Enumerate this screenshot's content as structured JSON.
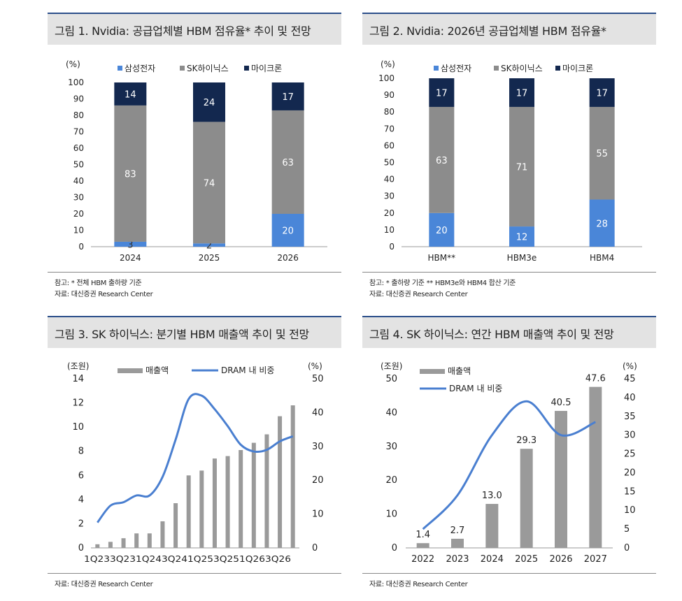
{
  "colors": {
    "samsung": "#4a86d8",
    "hynix": "#8c8c8c",
    "micron": "#13284f",
    "line": "#4a7fd0",
    "revenue_bar": "#9a9a9a"
  },
  "panel1": {
    "title": "그림 1. Nvidia: 공급업체별 HBM 점유율* 추이 및 전망",
    "notes": [
      "참고: * 전체 HBM 출하량 기준",
      "자료: 대신증권 Research Center"
    ]
  },
  "panel2": {
    "title": "그림 2. Nvidia: 2026년 공급업체별 HBM 점유율*",
    "notes": [
      "참고: * 출하량 기준 ** HBM3e와 HBM4 합산 기준",
      "자료: 대신증권 Research Center"
    ]
  },
  "panel3": {
    "title": "그림 3. SK 하이닉스: 분기별 HBM 매출액 추이 및 전망",
    "notes": [
      "자료: 대신증권 Research Center"
    ]
  },
  "panel4": {
    "title": "그림 4. SK 하이닉스: 연간 HBM 매출액 추이 및 전망",
    "notes": [
      "자료: 대신증권 Research Center"
    ]
  },
  "chart_data": [
    {
      "type": "bar",
      "stacked": true,
      "unit_label": "(%)",
      "categories": [
        "2024",
        "2025",
        "2026"
      ],
      "series": [
        {
          "name": "삼성전자",
          "values": [
            3,
            2,
            20
          ]
        },
        {
          "name": "SK하이닉스",
          "values": [
            83,
            74,
            63
          ]
        },
        {
          "name": "마이크론",
          "values": [
            14,
            24,
            17
          ]
        }
      ],
      "ylim": [
        0,
        100
      ],
      "yticks": [
        0,
        10,
        20,
        30,
        40,
        50,
        60,
        70,
        80,
        90,
        100
      ],
      "legend": "top"
    },
    {
      "type": "bar",
      "stacked": true,
      "unit_label": "(%)",
      "categories": [
        "HBM**",
        "HBM3e",
        "HBM4"
      ],
      "series": [
        {
          "name": "삼성전자",
          "values": [
            20,
            12,
            28
          ]
        },
        {
          "name": "SK하이닉스",
          "values": [
            63,
            71,
            55
          ]
        },
        {
          "name": "마이크론",
          "values": [
            17,
            17,
            17
          ]
        }
      ],
      "ylim": [
        0,
        100
      ],
      "yticks": [
        0,
        10,
        20,
        30,
        40,
        50,
        60,
        70,
        80,
        90,
        100
      ],
      "legend": "top"
    },
    {
      "type": "bar",
      "secondary_type": "line",
      "left_unit": "(조원)",
      "right_unit": "(%)",
      "x_tick_labels": [
        "1Q23",
        "3Q23",
        "1Q24",
        "3Q24",
        "1Q25",
        "3Q25",
        "1Q26",
        "3Q26"
      ],
      "x_label_row": "1Q233Q231Q243Q241Q253Q251Q263Q26",
      "series": [
        {
          "name": "매출액",
          "axis": "left",
          "type": "bar",
          "values": [
            0.3,
            0.5,
            0.8,
            1.2,
            1.2,
            2.2,
            3.7,
            6.0,
            6.4,
            7.4,
            7.6,
            8.1,
            8.7,
            9.4,
            10.9,
            11.8
          ]
        },
        {
          "name": "DRAM 내 비중",
          "axis": "right",
          "type": "line",
          "values": [
            7.5,
            12.5,
            13.5,
            15.5,
            15.5,
            21.0,
            32.0,
            44.0,
            45.0,
            41.0,
            36.0,
            30.5,
            28.5,
            29.0,
            31.5,
            33.0
          ]
        }
      ],
      "ylim_left": [
        0,
        14
      ],
      "yticks_left": [
        0,
        2,
        4,
        6,
        8,
        10,
        12,
        14
      ],
      "ylim_right": [
        0,
        50
      ],
      "yticks_right": [
        0,
        10,
        20,
        30,
        40,
        50
      ],
      "legend": "top"
    },
    {
      "type": "bar",
      "secondary_type": "line",
      "left_unit": "(조원)",
      "right_unit": "(%)",
      "categories": [
        "2022",
        "2023",
        "2024",
        "2025",
        "2026",
        "2027"
      ],
      "series": [
        {
          "name": "매출액",
          "axis": "left",
          "type": "bar",
          "values": [
            1.4,
            2.7,
            13.0,
            29.3,
            40.5,
            47.6
          ],
          "labels": [
            "1.4",
            "2.7",
            "13.0",
            "29.3",
            "40.5",
            "47.6"
          ]
        },
        {
          "name": "DRAM 내 비중",
          "axis": "right",
          "type": "line",
          "values": [
            5.0,
            14.0,
            30.0,
            39.0,
            30.0,
            33.5
          ]
        }
      ],
      "ylim_left": [
        0,
        50
      ],
      "yticks_left": [
        0,
        10,
        20,
        30,
        40,
        50
      ],
      "ylim_right": [
        0,
        45
      ],
      "yticks_right": [
        0,
        5,
        10,
        15,
        20,
        25,
        30,
        35,
        40,
        45
      ],
      "legend": "top-left"
    }
  ]
}
